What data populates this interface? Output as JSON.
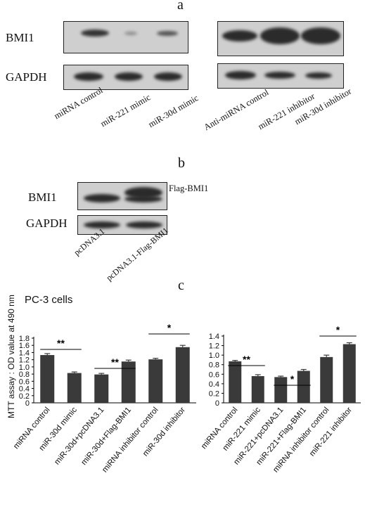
{
  "panel_a": {
    "letter": "a",
    "row_labels": [
      "BMI1",
      "GAPDH"
    ],
    "lanes_left": [
      "miRNA control",
      "miR-221 mimic",
      "miR-30d mimic"
    ],
    "lanes_right": [
      "Anti-miRNA control",
      "miR-221 inhibitor",
      "miR-30d inhibitor"
    ]
  },
  "panel_b": {
    "letter": "b",
    "row_labels": [
      "BMI1",
      "GAPDH"
    ],
    "band_annotation": "Flag-BMI1",
    "lanes": [
      "pcDNA3.1",
      "pcDNA3.1-Flag-BMI1"
    ]
  },
  "panel_c": {
    "letter": "c",
    "cell_line": "PC-3 cells",
    "y_axis_label": "MTT assay : OD value at 490 nm"
  },
  "chart_data": [
    {
      "type": "bar",
      "ylabel": "MTT assay : OD value at 490 nm",
      "ylim": [
        0,
        1.8
      ],
      "yticks": [
        "0",
        "0.2",
        "0.4",
        "0.6",
        "0.8",
        "1.0",
        "1.2",
        "1.4",
        "1.6",
        "1.8"
      ],
      "categories": [
        "miRNA control",
        "miR-30d mimic",
        "miR-30d+pcDNA3.1",
        "miR-30d+Flag-BMI1",
        "miRNA inhibitor control",
        "miR-30d inhibitor"
      ],
      "values": [
        1.33,
        0.83,
        0.79,
        1.15,
        1.21,
        1.55
      ],
      "errors": [
        0.04,
        0.03,
        0.03,
        0.04,
        0.03,
        0.05
      ],
      "bar_color": "#3a3a3a",
      "significance": [
        {
          "from": 0,
          "to": 1,
          "label": "**"
        },
        {
          "from": 2,
          "to": 3,
          "label": "**"
        },
        {
          "from": 4,
          "to": 5,
          "label": "*"
        }
      ]
    },
    {
      "type": "bar",
      "ylim": [
        0,
        1.4
      ],
      "yticks": [
        "0",
        "0.2",
        "0.4",
        "0.6",
        "0.8",
        "1.0",
        "1.2",
        "1.4"
      ],
      "categories": [
        "miRNA control",
        "miR-221 mimic",
        "miR-221+pcDNA3.1",
        "miR-221+Flag-BMI1",
        "miRNA inhibitor control",
        "miR-221 inhibitor"
      ],
      "values": [
        0.87,
        0.56,
        0.54,
        0.67,
        0.96,
        1.23
      ],
      "errors": [
        0.02,
        0.03,
        0.02,
        0.03,
        0.04,
        0.03
      ],
      "bar_color": "#3a3a3a",
      "significance": [
        {
          "from": 0,
          "to": 1,
          "label": "**"
        },
        {
          "from": 2,
          "to": 3,
          "label": "*"
        },
        {
          "from": 4,
          "to": 5,
          "label": "*"
        }
      ]
    }
  ]
}
